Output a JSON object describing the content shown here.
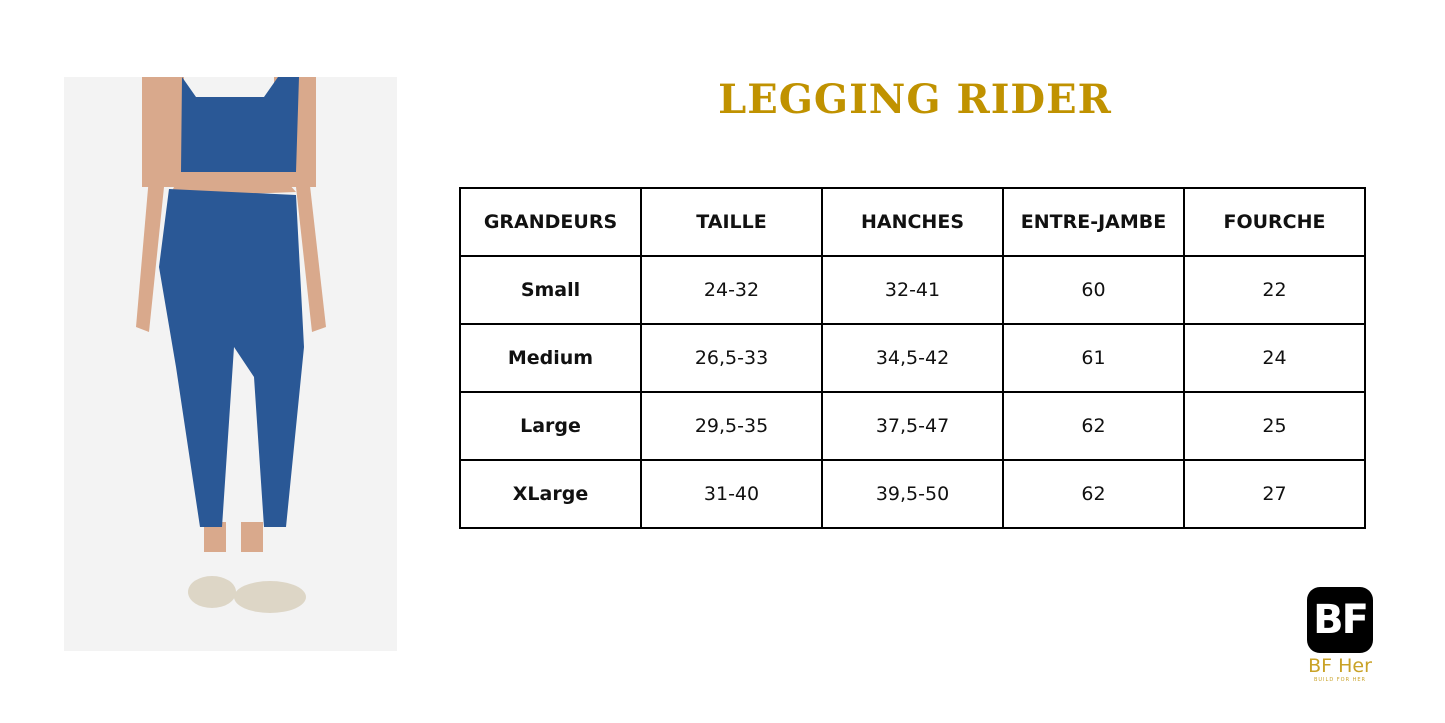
{
  "title": "LEGGING RIDER",
  "table": {
    "headers": [
      "GRANDEURS",
      "TAILLE",
      "HANCHES",
      "ENTRE-JAMBE",
      "FOURCHE"
    ],
    "rows": [
      [
        "Small",
        "24-32",
        "32-41",
        "60",
        "22"
      ],
      [
        "Medium",
        "26,5-33",
        "34,5-42",
        "61",
        "24"
      ],
      [
        "Large",
        "29,5-35",
        "37,5-47",
        "62",
        "25"
      ],
      [
        "XLarge",
        "31-40",
        "39,5-50",
        "62",
        "27"
      ]
    ]
  },
  "logo": {
    "mark": "BF",
    "name": "BF Her",
    "tagline": "BUILD FOR HER"
  },
  "colors": {
    "title": "#c09200",
    "garment": "#2a5896"
  }
}
